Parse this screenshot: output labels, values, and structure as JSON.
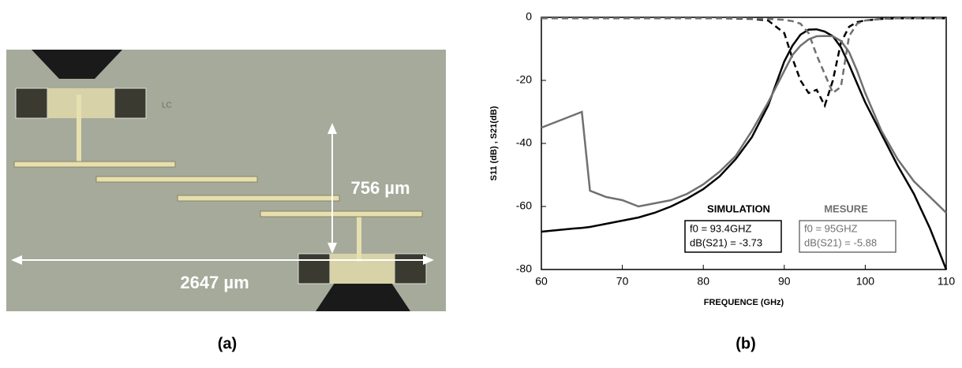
{
  "photo": {
    "labels": [
      "756 µm",
      "2647 µm",
      "LC"
    ]
  },
  "captions": [
    "(a)",
    "(b)"
  ],
  "chart_data": {
    "type": "line",
    "xlabel": "FREQUENCE (GHz)",
    "ylabel": "S11 (dB) , S21(dB)",
    "xlim": [
      60,
      110
    ],
    "ylim": [
      -80,
      0
    ],
    "xticks": [
      60,
      70,
      80,
      90,
      100,
      110
    ],
    "yticks": [
      0,
      -20,
      -40,
      -60,
      -80
    ],
    "x": [
      60,
      62,
      64,
      65,
      66,
      68,
      70,
      72,
      74,
      76,
      78,
      80,
      82,
      84,
      86,
      88,
      90,
      91,
      92,
      93,
      94,
      95,
      96,
      97,
      98,
      99,
      100,
      102,
      104,
      106,
      108,
      110
    ],
    "series": [
      {
        "color": "#000000",
        "dashed": false,
        "values": [
          -68,
          -67.5,
          -67,
          -66.8,
          -66.5,
          -65.5,
          -64.5,
          -63.5,
          -62,
          -60,
          -57.5,
          -54.5,
          -50.5,
          -45,
          -38,
          -28,
          -14,
          -9,
          -5.5,
          -3.9,
          -3.8,
          -4.5,
          -6,
          -9.5,
          -15,
          -21,
          -27,
          -37,
          -47,
          -56,
          -67,
          -80
        ]
      },
      {
        "color": "#000000",
        "dashed": true,
        "values": [
          -0.3,
          -0.3,
          -0.3,
          -0.3,
          -0.3,
          -0.3,
          -0.3,
          -0.3,
          -0.3,
          -0.3,
          -0.3,
          -0.3,
          -0.3,
          -0.4,
          -0.5,
          -1,
          -5,
          -13,
          -20,
          -24,
          -23,
          -28,
          -20,
          -8,
          -3,
          -1.5,
          -1,
          -0.5,
          -0.3,
          -0.3,
          -0.3,
          -0.3
        ]
      },
      {
        "color": "#707070",
        "dashed": false,
        "values": [
          -35,
          -33,
          -31,
          -30,
          -55,
          -57,
          -58,
          -60,
          -59,
          -58,
          -56,
          -53,
          -49,
          -44,
          -36,
          -27,
          -17,
          -12,
          -9,
          -7,
          -6,
          -5.9,
          -6,
          -7.5,
          -11,
          -17,
          -24,
          -36,
          -45,
          -52,
          -57,
          -62
        ]
      },
      {
        "color": "#707070",
        "dashed": true,
        "values": [
          -0.3,
          -0.3,
          -0.3,
          -0.3,
          -0.3,
          -0.3,
          -0.3,
          -0.3,
          -0.3,
          -0.3,
          -0.3,
          -0.3,
          -0.3,
          -0.3,
          -0.4,
          -0.5,
          -0.8,
          -1.2,
          -2,
          -5,
          -12,
          -18,
          -24,
          -22,
          -6,
          -2,
          -1,
          -0.5,
          -0.3,
          -0.3,
          -0.3,
          -0.3
        ]
      }
    ],
    "legend_boxes": [
      {
        "title": "SIMULATION",
        "lines": [
          "f0 = 93.4GHZ",
          "dB(S21) = -3.73"
        ],
        "color": "#000000"
      },
      {
        "title": "MESURE",
        "lines": [
          "f0 = 95GHZ",
          "dB(S21) = -5.88"
        ],
        "color": "#707070"
      }
    ]
  }
}
